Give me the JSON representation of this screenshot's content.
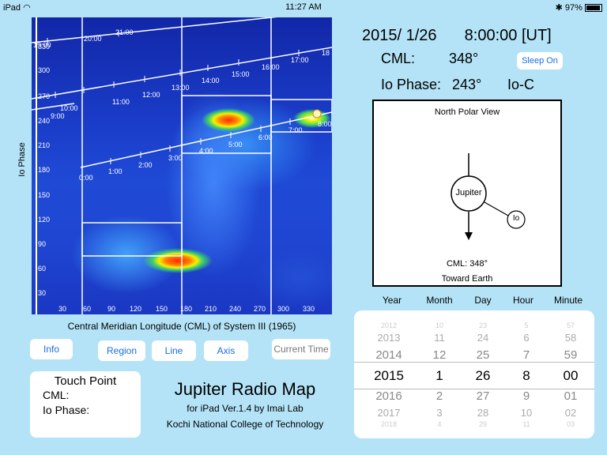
{
  "status_bar": {
    "device": "iPad",
    "time": "11:27 AM",
    "battery": "97%"
  },
  "map": {
    "y_axis_label": "Io Phase",
    "x_axis_label": "Central Meridian Longitude (CML) of System III (1965)",
    "y_ticks": [
      "330",
      "300",
      "270",
      "240",
      "210",
      "180",
      "150",
      "120",
      "90",
      "60",
      "30"
    ],
    "x_ticks": [
      "30",
      "60",
      "90",
      "120",
      "150",
      "180",
      "210",
      "240",
      "270",
      "300",
      "330"
    ],
    "time_labels_line1": [
      "19:00",
      "20:00",
      "21:00"
    ],
    "time_labels_line2": [
      "10:00",
      "11:00",
      "12:00",
      "13:00",
      "14:00",
      "15:00",
      "16:00",
      "17:00",
      "18"
    ],
    "time_labels_line3": [
      "9:00"
    ],
    "time_labels_line4": [
      "0:00",
      "1:00",
      "2:00",
      "3:00",
      "4:00",
      "5:00",
      "6:00",
      "7:00",
      "8:00"
    ]
  },
  "buttons": {
    "info": "Info",
    "region": "Region",
    "line": "Line",
    "axis": "Axis",
    "current_time": "Current Time",
    "sleep_on": "Sleep On"
  },
  "touch_point": {
    "title": "Touch Point",
    "cml_label": "CML:",
    "io_phase_label": "Io Phase:"
  },
  "app": {
    "name": "Jupiter Radio Map",
    "subtitle": "for iPad  Ver.1.4  by Imai Lab",
    "org": "Kochi National College of Technology"
  },
  "readout": {
    "date": "2015/   1/26",
    "time": "8:00:00 [UT]",
    "cml_label": "CML:",
    "cml_value": "348°",
    "io_phase_label": "Io Phase:",
    "io_phase_value": "243°",
    "io_source": "Io-C"
  },
  "polar_view": {
    "title": "North Polar View",
    "planet_label": "Jupiter",
    "moon_label": "Io",
    "cml_text": "CML: 348°",
    "direction_text": "Toward Earth"
  },
  "picker": {
    "headers": [
      "Year",
      "Month",
      "Day",
      "Hour",
      "Minute"
    ],
    "columns": [
      {
        "values": [
          "2012",
          "2013",
          "2014",
          "2015",
          "2016",
          "2017",
          "2018"
        ]
      },
      {
        "values": [
          "10",
          "11",
          "12",
          "1",
          "2",
          "3",
          "4"
        ]
      },
      {
        "values": [
          "23",
          "24",
          "25",
          "26",
          "27",
          "28",
          "29"
        ]
      },
      {
        "values": [
          "5",
          "6",
          "7",
          "8",
          "9",
          "10",
          "11"
        ]
      },
      {
        "values": [
          "57",
          "58",
          "59",
          "00",
          "01",
          "02",
          "03"
        ]
      }
    ],
    "selected_index": 3
  }
}
